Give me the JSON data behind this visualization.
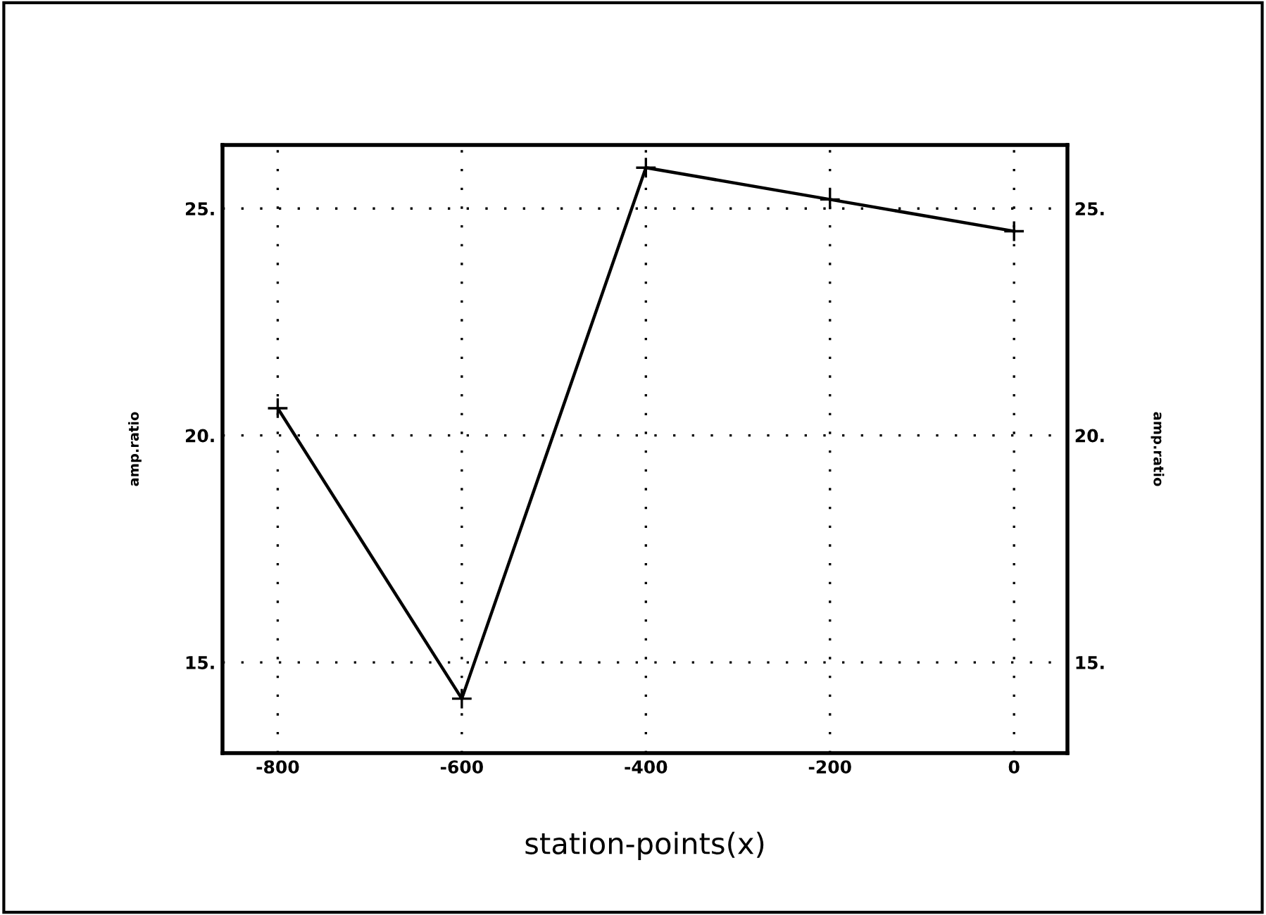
{
  "chart_data": {
    "type": "line",
    "xlabel": "station-points(x)",
    "ylabel": "amp.ratio",
    "y2label": "amp.ratio",
    "x": [
      -800,
      -600,
      -400,
      -200,
      0
    ],
    "series": [
      {
        "color": "#000000",
        "values": [
          20.6,
          14.2,
          25.9,
          25.2,
          24.5
        ]
      }
    ],
    "xlim": [
      -860,
      58
    ],
    "xticks": [
      -800,
      -600,
      -400,
      -200,
      0
    ],
    "ylim": [
      13.0,
      26.4
    ],
    "yticks": [
      {
        "value": 15,
        "label": "15."
      },
      {
        "value": 20,
        "label": "20."
      },
      {
        "value": 25,
        "label": "25."
      }
    ],
    "y2lim": [
      13.0,
      26.4
    ],
    "y2ticks": [
      {
        "value": 15,
        "label": "15."
      },
      {
        "value": 20,
        "label": "20."
      },
      {
        "value": 25,
        "label": "25."
      }
    ],
    "grid": true,
    "marker": "cross",
    "line_style": "solid"
  }
}
